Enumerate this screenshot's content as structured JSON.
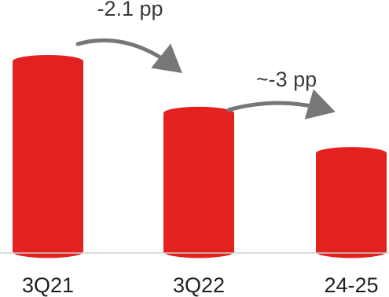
{
  "chart_data": {
    "type": "bar",
    "categories": [
      "3Q21",
      "3Q22",
      "24-25"
    ],
    "values": [
      100,
      73,
      52
    ],
    "ylim": [
      0,
      100
    ],
    "grid": false,
    "legend": "none",
    "bar_color": "#e3211f",
    "arrow_color": "#777777",
    "baseline_color": "#d0d0d0",
    "annotations": [
      {
        "label": "-2.1 pp",
        "from": "3Q21",
        "to": "3Q22"
      },
      {
        "label": "~-3 pp",
        "from": "3Q22",
        "to": "24-25"
      }
    ]
  }
}
